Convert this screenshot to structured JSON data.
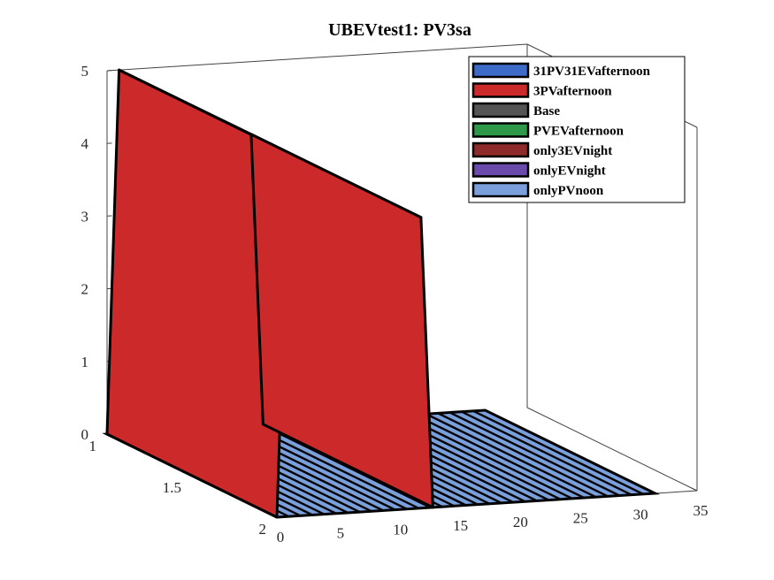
{
  "chart_data": {
    "type": "3d-bar",
    "title": "UBEVtest1: PV3sa",
    "xlabel": "",
    "ylabel": "",
    "zlabel": "",
    "x_ticks": [
      "0",
      "5",
      "10",
      "15",
      "20",
      "25",
      "30",
      "35"
    ],
    "y_ticks": [
      "1",
      "1.5",
      "2"
    ],
    "z_ticks": [
      "0",
      "1",
      "2",
      "3",
      "4",
      "5"
    ],
    "xlim": [
      0,
      35
    ],
    "ylim": [
      1,
      2
    ],
    "zlim": [
      0,
      5
    ],
    "legend_position": "top-right",
    "series": [
      {
        "name": "31PV31EVafternoon",
        "color": "#3d6bc8"
      },
      {
        "name": "3PVafternoon",
        "color": "#cc2a2a"
      },
      {
        "name": "Base",
        "color": "#555555"
      },
      {
        "name": "PVEVafternoon",
        "color": "#2e9a49"
      },
      {
        "name": "only3EVnight",
        "color": "#8f2a2a"
      },
      {
        "name": "onlyEVnight",
        "color": "#6a4aaa"
      },
      {
        "name": "onlyPVnoon",
        "color": "#7a9fdb"
      }
    ],
    "surface": {
      "series": "3PVafternoon",
      "points": [
        [
          0,
          0
        ],
        [
          1,
          5
        ],
        [
          12,
          4
        ],
        [
          13,
          0
        ]
      ]
    },
    "base_strips": 32
  }
}
